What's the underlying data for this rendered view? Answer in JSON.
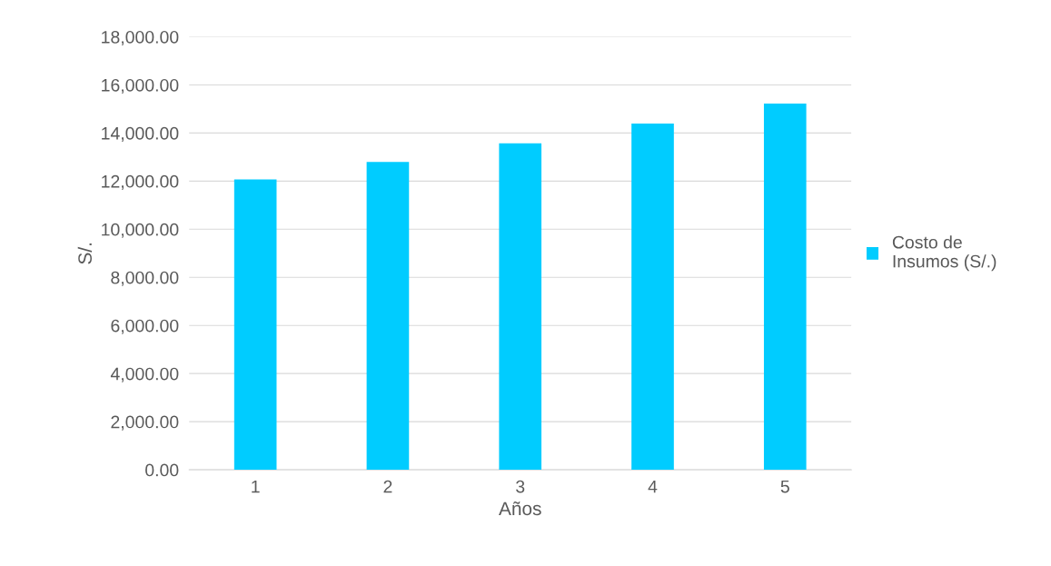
{
  "chart_data": {
    "type": "bar",
    "xlabel": "Años",
    "ylabel": "S/.",
    "categories": [
      "1",
      "2",
      "3",
      "4",
      "5"
    ],
    "series": [
      {
        "name": "Costo de\nInsumos (S/.)",
        "color": "#00ccff",
        "values": [
          12070,
          12800,
          13570,
          14390,
          15220
        ]
      }
    ],
    "ylim": [
      0,
      18000
    ],
    "yticks": [
      {
        "value": 0,
        "label": "0.00"
      },
      {
        "value": 2000,
        "label": "2,000.00"
      },
      {
        "value": 4000,
        "label": "4,000.00"
      },
      {
        "value": 6000,
        "label": "6,000.00"
      },
      {
        "value": 8000,
        "label": "8,000.00"
      },
      {
        "value": 10000,
        "label": "10,000.00"
      },
      {
        "value": 12000,
        "label": "12,000.00"
      },
      {
        "value": 14000,
        "label": "14,000.00"
      },
      {
        "value": 16000,
        "label": "16,000.00"
      },
      {
        "value": 18000,
        "label": "18,000.00"
      }
    ],
    "grid": "y",
    "legend": "right"
  }
}
